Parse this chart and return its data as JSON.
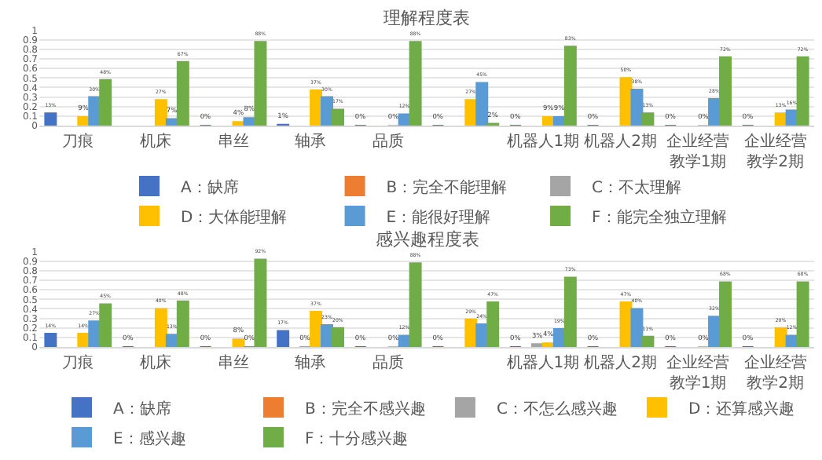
{
  "chart_data": [
    {
      "type": "bar",
      "title": "理解程度表",
      "categories": [
        "刀痕",
        "机床",
        "串丝",
        "轴承",
        "品质",
        null,
        "机器人1期",
        "机器人2期",
        "企业经营教学1期",
        "企业经营教学2期"
      ],
      "ylim": [
        0,
        1
      ],
      "yticks": [
        0,
        0.1,
        0.2,
        0.3,
        0.4,
        0.5,
        0.6,
        0.7,
        0.8,
        0.9,
        1
      ],
      "grid": "y",
      "legend": "bottom",
      "series": [
        {
          "name": "A：缺席",
          "color": "#4472c4",
          "values": [
            0.13,
            null,
            0,
            0.01,
            0,
            0,
            0,
            0,
            0,
            0
          ],
          "value_labels": [
            "13%",
            null,
            "0%",
            "1%",
            "0%",
            "0%",
            "0%",
            "0%",
            "0%",
            "0%"
          ]
        },
        {
          "name": "B：完全不能理解",
          "color": "#ed7d31",
          "values": [
            null,
            null,
            null,
            null,
            null,
            null,
            null,
            null,
            null,
            null
          ],
          "value_labels": [
            null,
            null,
            null,
            null,
            null,
            null,
            null,
            null,
            null,
            null
          ]
        },
        {
          "name": "C：不太理解",
          "color": "#a5a5a5",
          "values": [
            null,
            null,
            null,
            null,
            null,
            null,
            null,
            null,
            null,
            null
          ],
          "value_labels": [
            null,
            null,
            null,
            null,
            null,
            null,
            null,
            null,
            null,
            null
          ]
        },
        {
          "name": "D：大体能理解",
          "color": "#ffc000",
          "values": [
            0.09,
            0.27,
            0.04,
            0.37,
            0,
            0.27,
            0.09,
            0.5,
            0,
            0.13
          ],
          "value_labels": [
            "9%",
            "27%",
            "4%",
            "37%",
            "0%",
            "27%",
            "9%",
            "50%",
            "0%",
            "13%"
          ]
        },
        {
          "name": "E：能很好理解",
          "color": "#5b9bd5",
          "values": [
            0.3,
            0.07,
            0.08,
            0.3,
            0.12,
            0.45,
            0.09,
            0.38,
            0.28,
            0.16
          ],
          "value_labels": [
            "30%",
            "7%",
            "8%",
            "30%",
            "12%",
            "45%",
            "9%",
            "38%",
            "28%",
            "16%"
          ]
        },
        {
          "name": "F：能完全独立理解",
          "color": "#70ad47",
          "values": [
            0.48,
            0.67,
            0.88,
            0.17,
            0.88,
            0.02,
            0.83,
            0.13,
            0.72,
            0.72
          ],
          "value_labels": [
            "48%",
            "67%",
            "88%",
            "17%",
            "88%",
            "2%",
            "83%",
            "13%",
            "72%",
            "72%"
          ]
        }
      ]
    },
    {
      "type": "bar",
      "title": "感兴趣程度表",
      "categories": [
        "刀痕",
        "机床",
        "串丝",
        "轴承",
        "品质",
        null,
        "机器人1期",
        "机器人2期",
        "企业经营教学1期",
        "企业经营教学2期"
      ],
      "ylim": [
        0,
        1
      ],
      "yticks": [
        0,
        0.1,
        0.2,
        0.3,
        0.4,
        0.5,
        0.6,
        0.7,
        0.8,
        0.9,
        1
      ],
      "grid": "y",
      "legend": "bottom",
      "series": [
        {
          "name": "A：缺席",
          "color": "#4472c4",
          "values": [
            0.14,
            0,
            0,
            0.17,
            0,
            0,
            0,
            0,
            0,
            0
          ],
          "value_labels": [
            "14%",
            "0%",
            "0%",
            "17%",
            "0%",
            "0%",
            "0%",
            "0%",
            "0%",
            "0%"
          ]
        },
        {
          "name": "B：完全不感兴趣",
          "color": "#ed7d31",
          "values": [
            null,
            null,
            null,
            null,
            null,
            null,
            null,
            null,
            null,
            null
          ],
          "value_labels": [
            null,
            null,
            null,
            null,
            null,
            null,
            null,
            null,
            null,
            null
          ]
        },
        {
          "name": "C：不怎么感兴趣",
          "color": "#a5a5a5",
          "values": [
            null,
            null,
            null,
            0,
            null,
            null,
            0.03,
            null,
            null,
            null
          ],
          "value_labels": [
            null,
            null,
            null,
            "0%",
            null,
            null,
            "3%",
            null,
            null,
            null
          ]
        },
        {
          "name": "D：还算感兴趣",
          "color": "#ffc000",
          "values": [
            0.14,
            0.4,
            0.08,
            0.37,
            0,
            0.29,
            0.04,
            0.47,
            0,
            0.2
          ],
          "value_labels": [
            "14%",
            "40%",
            "8%",
            "37%",
            "0%",
            "29%",
            "4%",
            "47%",
            "0%",
            "20%"
          ]
        },
        {
          "name": "E：感兴趣",
          "color": "#5b9bd5",
          "values": [
            0.27,
            0.13,
            0,
            0.23,
            0.12,
            0.24,
            0.19,
            0.4,
            0.32,
            0.12
          ],
          "value_labels": [
            "27%",
            "13%",
            "0%",
            "23%",
            "12%",
            "24%",
            "19%",
            "40%",
            "32%",
            "12%"
          ]
        },
        {
          "name": "F：十分感兴趣",
          "color": "#70ad47",
          "values": [
            0.45,
            0.48,
            0.92,
            0.2,
            0.88,
            0.47,
            0.73,
            0.11,
            0.68,
            0.68
          ],
          "value_labels": [
            "45%",
            "48%",
            "92%",
            "20%",
            "88%",
            "47%",
            "73%",
            "11%",
            "68%",
            "68%"
          ]
        }
      ]
    }
  ]
}
